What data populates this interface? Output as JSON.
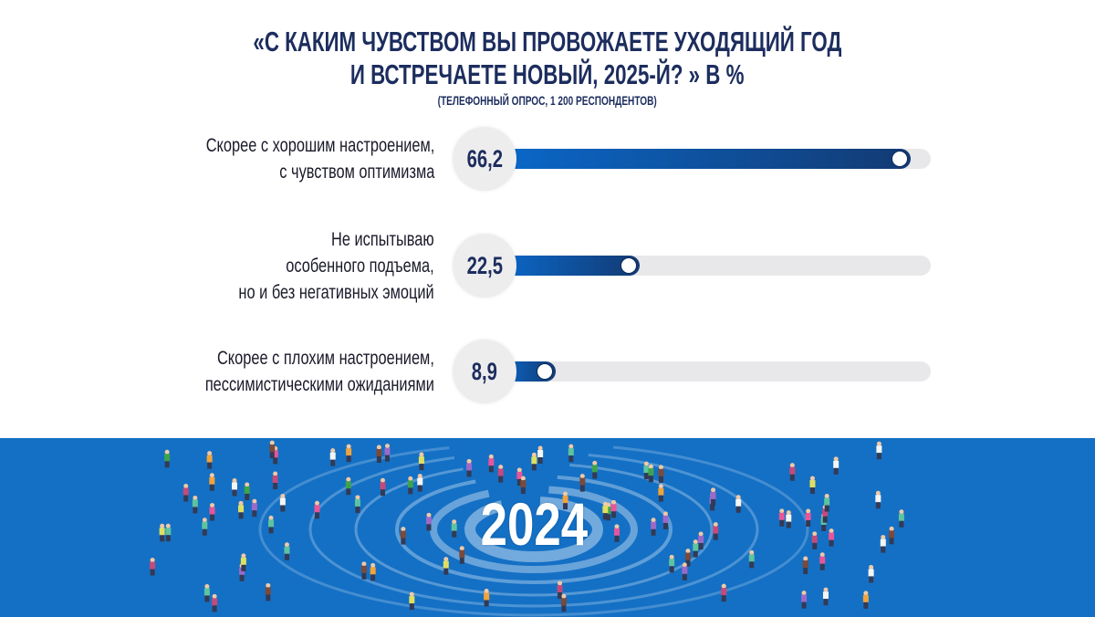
{
  "chart_data": {
    "type": "bar",
    "orientation": "horizontal",
    "title": "«С КАКИМ ЧУВСТВОМ ВЫ ПРОВОЖАЕТЕ УХОДЯЩИЙ ГОД",
    "title_line2": "И ВСТРЕЧАЕТЕ НОВЫЙ, 2025-Й? »  В %",
    "subtitle": "(ТЕЛЕФОННЫЙ ОПРОС, 1 200 РЕСПОНДЕНТОВ)",
    "categories": [
      [
        "Скорее с хорошим настроением,",
        "с чувством оптимизма"
      ],
      [
        "Не испытываю",
        "особенного подъема,",
        "но и без негативных эмоций"
      ],
      [
        "Скорее с плохим настроением,",
        "пессимистическими ожиданиями"
      ]
    ],
    "values": [
      66.2,
      22.5,
      8.9
    ],
    "value_labels": [
      "66,2",
      "22,5",
      "8,9"
    ],
    "unit": "%"
  },
  "banner": {
    "year": "2024"
  },
  "colors": {
    "title": "#1c2d5e",
    "bar_start": "#0a68c9",
    "bar_end": "#133a73",
    "track": "#e8e8ea",
    "band": "#1470c4"
  }
}
